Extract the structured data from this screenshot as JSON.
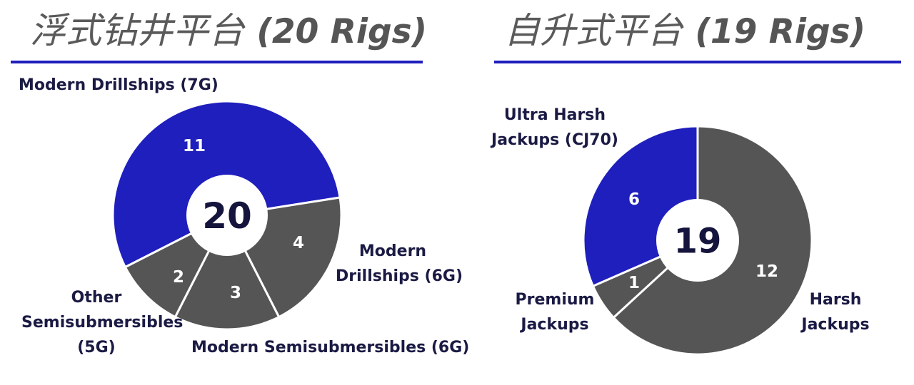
{
  "header": {
    "left": {
      "title_cn": "浮式钻井平台",
      "title_count": "(20 Rigs)"
    },
    "right": {
      "title_cn": "自升式平台",
      "title_count": "(19 Rigs)"
    }
  },
  "colors": {
    "blue": "#1f1fbd",
    "gray": "#555555",
    "label_text": "#1a1a44",
    "center_text": "#14143c"
  },
  "chart_data": [
    {
      "type": "pie",
      "title": "浮式钻井平台 (20 Rigs)",
      "total": 20,
      "total_label": "20",
      "slices": [
        {
          "label": "Modern Drillships (7G)",
          "label_lines": [
            "Modern Drillships (7G)"
          ],
          "value": 11,
          "value_label": "11",
          "color": "#1f1fbd"
        },
        {
          "label": "Modern Drillships (6G)",
          "label_lines": [
            "Modern",
            "Drillships (6G)"
          ],
          "value": 4,
          "value_label": "4",
          "color": "#555555"
        },
        {
          "label": "Modern Semisubmersibles (6G)",
          "label_lines": [
            "Modern Semisubmersibles (6G)"
          ],
          "value": 3,
          "value_label": "3",
          "color": "#555555"
        },
        {
          "label": "Other Semisubmersibles (5G)",
          "label_lines": [
            "Other",
            "Semisubmersibles",
            "(5G)"
          ],
          "value": 2,
          "value_label": "2",
          "color": "#555555"
        }
      ]
    },
    {
      "type": "pie",
      "title": "自升式平台 (19 Rigs)",
      "total": 19,
      "total_label": "19",
      "slices": [
        {
          "label": "Harsh Jackups",
          "label_lines": [
            "Harsh",
            "Jackups"
          ],
          "value": 12,
          "value_label": "12",
          "color": "#555555"
        },
        {
          "label": "Premium Jackups",
          "label_lines": [
            "Premium",
            "Jackups"
          ],
          "value": 1,
          "value_label": "1",
          "color": "#555555"
        },
        {
          "label": "Ultra Harsh Jackups (CJ70)",
          "label_lines": [
            "Ultra Harsh",
            "Jackups (CJ70)"
          ],
          "value": 6,
          "value_label": "6",
          "color": "#1f1fbd"
        }
      ]
    }
  ]
}
